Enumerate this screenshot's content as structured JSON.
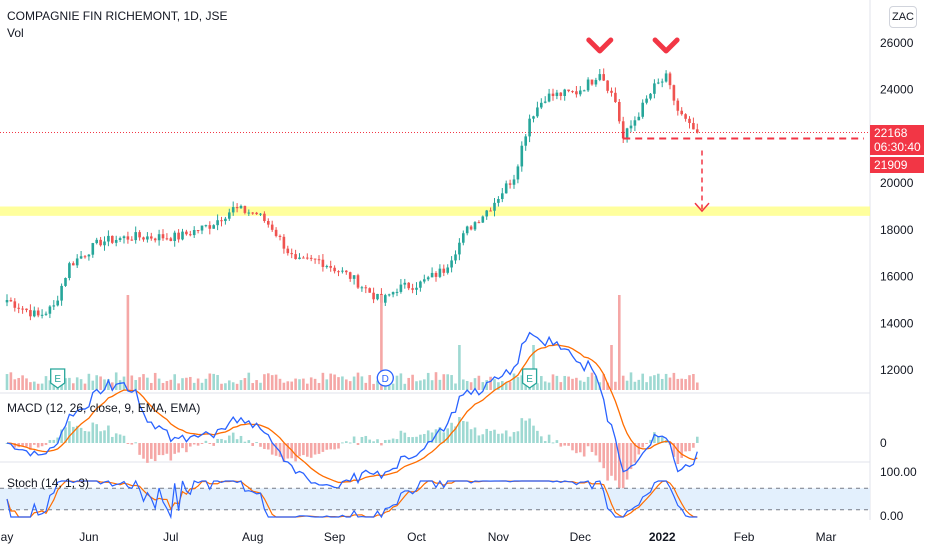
{
  "header": {
    "title": "COMPAGNIE FIN RICHEMONT, 1D, JSE",
    "vol_label": "Vol",
    "currency": "ZAC"
  },
  "price_boxes": {
    "last_price": "22168",
    "countdown": "06:30:40",
    "level_price": "21909",
    "last_color": "#f23645",
    "level_color": "#f23645"
  },
  "macd": {
    "title": "MACD (12, 26, close, 9, EMA, EMA)",
    "zero_label": "0"
  },
  "stoch": {
    "title": "Stoch (14, 1, 3)",
    "top_label": "100.00",
    "bottom_label": "0.00"
  },
  "colors": {
    "up": "#26a69a",
    "down": "#ef5350",
    "vol_up": "#9ed9d2",
    "vol_down": "#f5a7a6",
    "highlight_band": "#ffff8c",
    "macd_line": "#2962ff",
    "signal_line": "#ff6d00",
    "stoch_k": "#2962ff",
    "stoch_d": "#ff6d00",
    "stoch_band": "#e3f0fd",
    "annotation": "#f23645"
  },
  "chart_data": {
    "type": "candlestick",
    "title": "COMPAGNIE FIN RICHEMONT, 1D, JSE",
    "y_ticks": [
      "26000",
      "24000",
      "22000",
      "20000",
      "18000",
      "16000",
      "14000",
      "12000"
    ],
    "y_tick_values": [
      26000,
      24000,
      22000,
      20000,
      18000,
      16000,
      14000,
      12000
    ],
    "ylim": [
      11000,
      27000
    ],
    "x_ticks": [
      "ay",
      "Jun",
      "Jul",
      "Aug",
      "Sep",
      "Oct",
      "Nov",
      "Dec",
      "2022",
      "Feb",
      "Mar"
    ],
    "x_tick_index": [
      0,
      21,
      42,
      63,
      84,
      105,
      126,
      147,
      168,
      189,
      210
    ],
    "bold_x_tick": "2022",
    "anchors_close": [
      [
        0,
        15000
      ],
      [
        8,
        14300
      ],
      [
        12,
        14700
      ],
      [
        16,
        16500
      ],
      [
        24,
        17500
      ],
      [
        32,
        17700
      ],
      [
        44,
        17700
      ],
      [
        52,
        18200
      ],
      [
        58,
        18900
      ],
      [
        64,
        18700
      ],
      [
        68,
        18100
      ],
      [
        74,
        16600
      ],
      [
        80,
        16700
      ],
      [
        88,
        16000
      ],
      [
        94,
        15200
      ],
      [
        96,
        14900
      ],
      [
        100,
        15500
      ],
      [
        106,
        15700
      ],
      [
        112,
        16300
      ],
      [
        118,
        18000
      ],
      [
        124,
        19000
      ],
      [
        130,
        20300
      ],
      [
        134,
        22800
      ],
      [
        138,
        23700
      ],
      [
        146,
        23900
      ],
      [
        150,
        24400
      ],
      [
        152,
        24800
      ],
      [
        156,
        23500
      ],
      [
        158,
        21900
      ],
      [
        162,
        23000
      ],
      [
        166,
        24100
      ],
      [
        169,
        24500
      ],
      [
        172,
        23100
      ],
      [
        175,
        22400
      ],
      [
        177,
        22168
      ]
    ],
    "resistance_zone": [
      18600,
      19000
    ],
    "support_level": 21909,
    "target_level": 18800,
    "markers": [
      {
        "type": "earnings",
        "label": "E",
        "index": 13
      },
      {
        "type": "dividend",
        "label": "D",
        "index": 97
      },
      {
        "type": "earnings",
        "label": "E",
        "index": 134
      }
    ],
    "double_top_indices": [
      152,
      169
    ],
    "macd": {
      "zero_label": "0"
    },
    "stoch": {
      "range": [
        0,
        100
      ],
      "levels": [
        20,
        80
      ]
    }
  }
}
